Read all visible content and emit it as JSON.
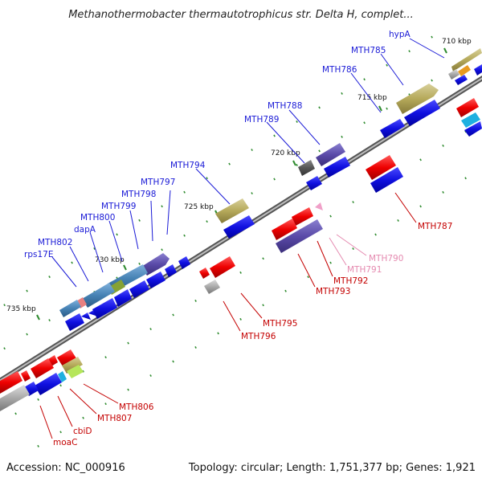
{
  "title": "Methanothermobacter thermautotrophicus str. Delta H, complet...",
  "footer": {
    "accession": "Accession: NC_000916",
    "summary": "Topology: circular; Length: 1,751,377 bp; Genes: 1,921"
  },
  "ticks": {
    "t710": "710 kbp",
    "t715": "715 kbp",
    "t720": "720 kbp",
    "t725": "725 kbp",
    "t730": "730 kbp",
    "t735": "735 kbp"
  },
  "genes": {
    "hypA": "hypA",
    "mth785": "MTH785",
    "mth786": "MTH786",
    "mth787": "MTH787",
    "mth788": "MTH788",
    "mth789": "MTH789",
    "mth790": "MTH790",
    "mth791": "MTH791",
    "mth792": "MTH792",
    "mth793": "MTH793",
    "mth794": "MTH794",
    "mth795": "MTH795",
    "mth796": "MTH796",
    "mth797": "MTH797",
    "mth798": "MTH798",
    "mth799": "MTH799",
    "mth800": "MTH800",
    "dapA": "dapA",
    "mth802": "MTH802",
    "rps17E": "rps17E",
    "mth806": "MTH806",
    "mth807": "MTH807",
    "cbiD": "cbiD",
    "moaC": "moaC"
  },
  "colors": {
    "forward_strand": "#1a1ad6",
    "reverse_strand": "#e60000",
    "cog_purple": "#5a4aa8",
    "cog_olive": "#b5a95a",
    "cog_steel": "#4682b4",
    "cog_gray": "#a9a9a9",
    "label_blue": "#1a1ad6",
    "label_red": "#c40000",
    "label_pink": "#e58ab0",
    "backbone": "#7a7a7a",
    "tick_green": "#2e8b2e"
  }
}
